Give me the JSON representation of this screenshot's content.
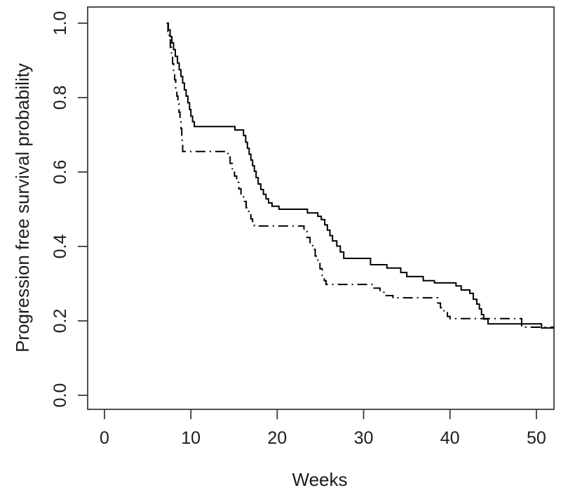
{
  "figure": {
    "background": "#ffffff",
    "axis_color": "#3c3c3c",
    "text_color": "#1c1c1c",
    "curve_color": "#000000"
  },
  "chart_data": {
    "type": "line",
    "subtype": "kaplan-meier-step-survival",
    "title": "",
    "xlabel": "Weeks",
    "ylabel": "Progression free survival probability",
    "x_ticks": [
      0,
      10,
      20,
      30,
      40,
      50
    ],
    "y_ticks": [
      "0.0",
      "0.2",
      "0.4",
      "0.6",
      "0.8",
      "1.0"
    ],
    "xlim": [
      -1.95,
      52.1
    ],
    "ylim": [
      -0.038,
      1.043
    ],
    "grid": false,
    "legend": "none",
    "series": [
      {
        "name": "solid-curve",
        "line_style": "solid",
        "steps": [
          [
            7.2,
            1.0
          ],
          [
            7.4,
            0.982
          ],
          [
            7.6,
            0.964
          ],
          [
            7.8,
            0.947
          ],
          [
            8.0,
            0.929
          ],
          [
            8.2,
            0.911
          ],
          [
            8.45,
            0.893
          ],
          [
            8.65,
            0.875
          ],
          [
            8.85,
            0.857
          ],
          [
            9.05,
            0.839
          ],
          [
            9.25,
            0.821
          ],
          [
            9.45,
            0.804
          ],
          [
            9.65,
            0.786
          ],
          [
            9.85,
            0.768
          ],
          [
            10.0,
            0.75
          ],
          [
            10.2,
            0.735
          ],
          [
            10.4,
            0.722
          ],
          [
            15.1,
            0.713
          ],
          [
            16.1,
            0.698
          ],
          [
            16.35,
            0.68
          ],
          [
            16.55,
            0.664
          ],
          [
            16.75,
            0.648
          ],
          [
            16.95,
            0.632
          ],
          [
            17.15,
            0.617
          ],
          [
            17.35,
            0.602
          ],
          [
            17.55,
            0.585
          ],
          [
            17.8,
            0.568
          ],
          [
            18.1,
            0.553
          ],
          [
            18.4,
            0.54
          ],
          [
            18.7,
            0.528
          ],
          [
            19.0,
            0.517
          ],
          [
            19.4,
            0.508
          ],
          [
            20.2,
            0.5
          ],
          [
            23.5,
            0.49
          ],
          [
            24.7,
            0.481
          ],
          [
            25.1,
            0.472
          ],
          [
            25.5,
            0.458
          ],
          [
            25.8,
            0.444
          ],
          [
            26.1,
            0.429
          ],
          [
            26.4,
            0.415
          ],
          [
            26.9,
            0.401
          ],
          [
            27.3,
            0.385
          ],
          [
            27.7,
            0.368
          ],
          [
            30.8,
            0.351
          ],
          [
            32.7,
            0.342
          ],
          [
            34.3,
            0.33
          ],
          [
            35.0,
            0.319
          ],
          [
            36.9,
            0.308
          ],
          [
            38.2,
            0.302
          ],
          [
            40.7,
            0.294
          ],
          [
            41.3,
            0.283
          ],
          [
            42.3,
            0.274
          ],
          [
            42.7,
            0.258
          ],
          [
            43.1,
            0.245
          ],
          [
            43.4,
            0.232
          ],
          [
            43.65,
            0.217
          ],
          [
            43.9,
            0.205
          ],
          [
            44.4,
            0.192
          ],
          [
            50.6,
            0.181
          ],
          [
            52.1,
            0.181
          ]
        ]
      },
      {
        "name": "dotdash-curve",
        "line_style": "dotdash",
        "steps": [
          [
            7.2,
            1.0
          ],
          [
            7.35,
            0.978
          ],
          [
            7.5,
            0.957
          ],
          [
            7.62,
            0.935
          ],
          [
            7.75,
            0.913
          ],
          [
            7.88,
            0.891
          ],
          [
            8.0,
            0.87
          ],
          [
            8.12,
            0.848
          ],
          [
            8.25,
            0.826
          ],
          [
            8.38,
            0.804
          ],
          [
            8.5,
            0.783
          ],
          [
            8.62,
            0.761
          ],
          [
            8.74,
            0.739
          ],
          [
            8.85,
            0.717
          ],
          [
            8.95,
            0.696
          ],
          [
            9.0,
            0.674
          ],
          [
            9.05,
            0.655
          ],
          [
            14.3,
            0.64
          ],
          [
            14.55,
            0.623
          ],
          [
            14.8,
            0.606
          ],
          [
            15.05,
            0.589
          ],
          [
            15.3,
            0.572
          ],
          [
            15.55,
            0.555
          ],
          [
            15.8,
            0.538
          ],
          [
            16.1,
            0.521
          ],
          [
            16.4,
            0.504
          ],
          [
            16.7,
            0.487
          ],
          [
            16.95,
            0.474
          ],
          [
            17.15,
            0.464
          ],
          [
            17.35,
            0.455
          ],
          [
            23.1,
            0.44
          ],
          [
            23.45,
            0.424
          ],
          [
            23.8,
            0.408
          ],
          [
            24.1,
            0.392
          ],
          [
            24.4,
            0.374
          ],
          [
            24.7,
            0.358
          ],
          [
            24.95,
            0.34
          ],
          [
            25.2,
            0.322
          ],
          [
            25.45,
            0.308
          ],
          [
            25.65,
            0.298
          ],
          [
            31.2,
            0.288
          ],
          [
            31.9,
            0.277
          ],
          [
            32.6,
            0.268
          ],
          [
            33.4,
            0.262
          ],
          [
            38.6,
            0.248
          ],
          [
            38.9,
            0.235
          ],
          [
            39.3,
            0.222
          ],
          [
            39.7,
            0.212
          ],
          [
            40.0,
            0.206
          ],
          [
            48.3,
            0.183
          ],
          [
            52.1,
            0.183
          ]
        ]
      }
    ]
  }
}
